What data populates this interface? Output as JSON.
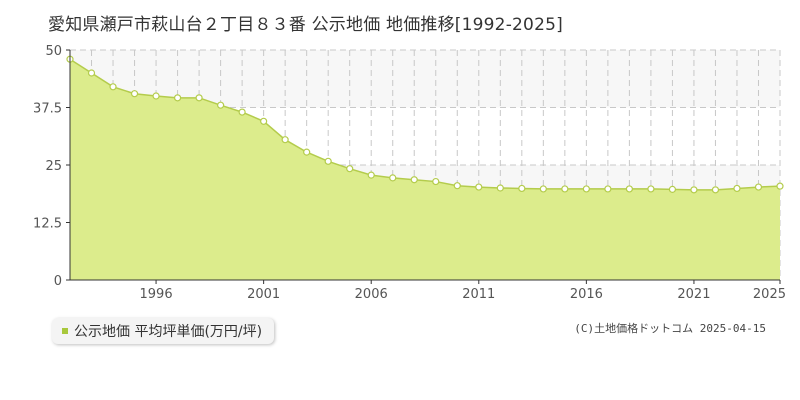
{
  "title": "愛知県瀬戸市萩山台２丁目８３番 公示地価 地価推移[1992-2025]",
  "legend": {
    "label": "公示地価 平均坪単価(万円/坪)"
  },
  "copyright": "(C)土地価格ドットコム 2025-04-15",
  "colors": {
    "fill": "#dcec8c",
    "line": "#b4cc4c",
    "point_fill": "#ffffff",
    "grid": "#c8c8c8",
    "band": "#f7f7f7",
    "swatch": "#a8c83c"
  },
  "chart_data": {
    "type": "area",
    "x": [
      1992,
      1993,
      1994,
      1995,
      1996,
      1997,
      1998,
      1999,
      2000,
      2001,
      2002,
      2003,
      2004,
      2005,
      2006,
      2007,
      2008,
      2009,
      2010,
      2011,
      2012,
      2013,
      2014,
      2015,
      2016,
      2017,
      2018,
      2019,
      2020,
      2021,
      2022,
      2023,
      2024,
      2025
    ],
    "series": [
      {
        "values": [
          48.0,
          45.0,
          42.0,
          40.5,
          40.0,
          39.6,
          39.6,
          38.0,
          36.5,
          34.5,
          30.5,
          27.8,
          25.8,
          24.2,
          22.8,
          22.2,
          21.8,
          21.4,
          20.5,
          20.2,
          20.0,
          19.9,
          19.8,
          19.8,
          19.8,
          19.8,
          19.8,
          19.8,
          19.7,
          19.6,
          19.6,
          19.9,
          20.2,
          20.4
        ]
      }
    ],
    "xlim": [
      1992,
      2025
    ],
    "ylim": [
      0,
      50
    ],
    "y_ticks": [
      "0",
      "12.5",
      "25",
      "37.5",
      "50"
    ],
    "y_tick_values": [
      0,
      12.5,
      25,
      37.5,
      50
    ],
    "x_tick_labels": [
      "1996",
      "2001",
      "2006",
      "2011",
      "2016",
      "2021",
      "2025"
    ],
    "x_tick_values": [
      1996,
      2001,
      2006,
      2011,
      2016,
      2021,
      2025
    ],
    "grid": true
  }
}
